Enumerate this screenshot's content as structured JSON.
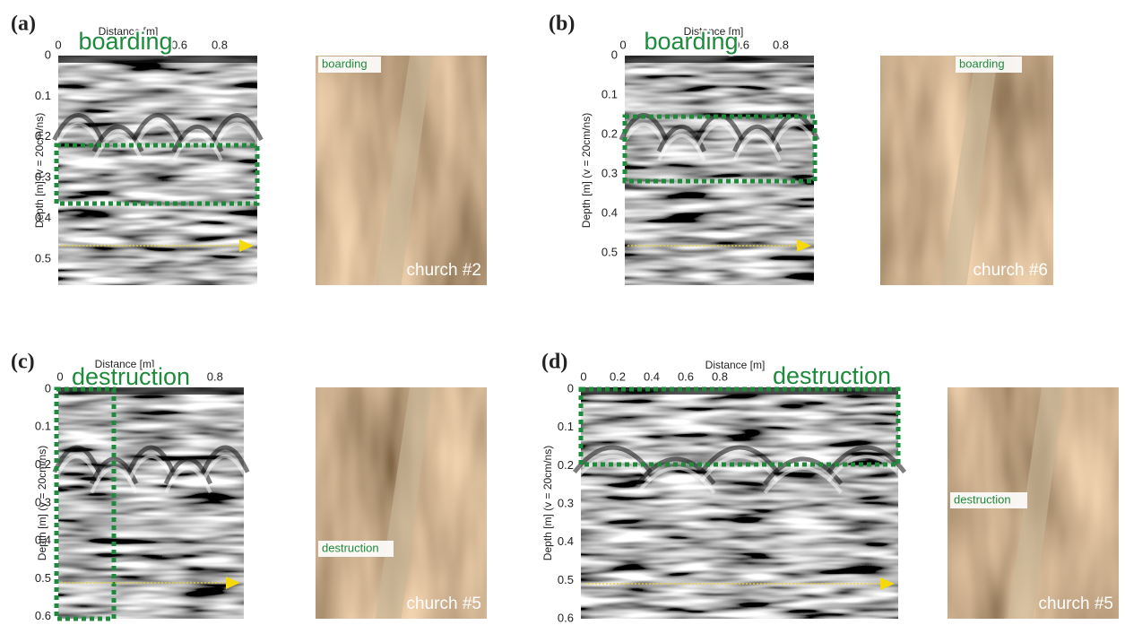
{
  "panels": [
    {
      "label": "(a)",
      "x_axis_title": "Distance [m]",
      "x_ticks": [
        0,
        0.6,
        0.8
      ],
      "y_axis_title": "Depth [m] (v = 20cm/ns)",
      "y_ticks": [
        0,
        0.1,
        0.2,
        0.3,
        0.4,
        0.5
      ],
      "annotation": "boarding",
      "photo_labels": [
        "boarding",
        "church #2"
      ]
    },
    {
      "label": "(b)",
      "x_axis_title": "Distance [m]",
      "x_ticks": [
        0,
        0.6,
        0.8
      ],
      "y_axis_title": "Depth [m] (v = 20cm/ns)",
      "y_ticks": [
        0,
        0.1,
        0.2,
        0.3,
        0.4,
        0.5
      ],
      "annotation": "boarding",
      "photo_labels": [
        "boarding",
        "church #6"
      ]
    },
    {
      "label": "(c)",
      "x_axis_title": "Distance [m]",
      "x_ticks": [
        0,
        0.8
      ],
      "y_axis_title": "Depth [m] (v = 20cm/ns)",
      "y_ticks": [
        0,
        0.1,
        0.2,
        0.3,
        0.4,
        0.5,
        0.6
      ],
      "annotation": "destruction",
      "photo_labels": [
        "destruction",
        "church #5"
      ]
    },
    {
      "label": "(d)",
      "x_axis_title": "Distance [m]",
      "x_ticks": [
        0,
        0.2,
        0.4,
        0.6,
        0.8
      ],
      "y_axis_title": "Depth [m] (v = 20cm/ns)",
      "y_ticks": [
        0,
        0.1,
        0.2,
        0.3,
        0.4,
        0.5,
        0.6
      ],
      "annotation": "destruction",
      "photo_labels": [
        "destruction",
        "church #5"
      ]
    }
  ]
}
